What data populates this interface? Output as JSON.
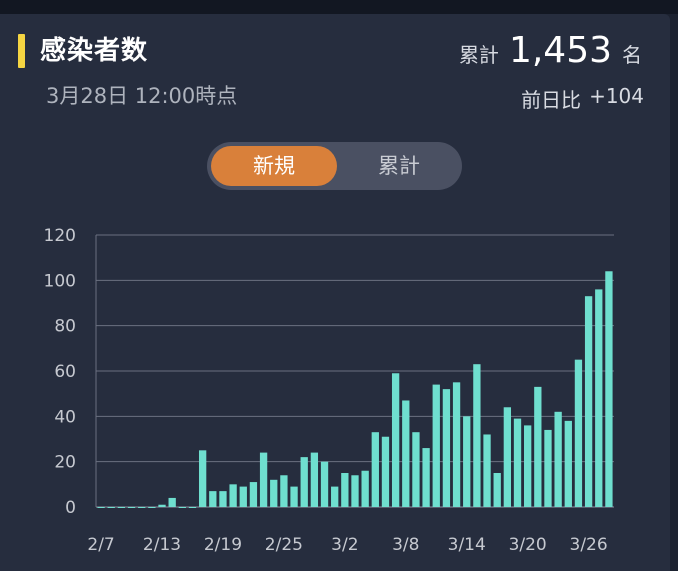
{
  "header": {
    "title": "感染者数",
    "subtitle": "3月28日 12:00時点",
    "total_label": "累計",
    "total_value": "1,453",
    "total_unit": "名",
    "diff_label": "前日比",
    "diff_value": "+104"
  },
  "toggle": {
    "active_label": "新規",
    "inactive_label": "累計"
  },
  "colors": {
    "bar": "#6fdfcf",
    "accent": "#f5d542",
    "toggle_active": "#d9803a",
    "background": "#262d3e"
  },
  "chart_data": {
    "type": "bar",
    "title": "",
    "xlabel": "",
    "ylabel": "",
    "ylim": [
      0,
      120
    ],
    "yticks": [
      0,
      20,
      40,
      60,
      80,
      100,
      120
    ],
    "grid": true,
    "categories": [
      "2/7",
      "2/8",
      "2/9",
      "2/10",
      "2/11",
      "2/12",
      "2/13",
      "2/14",
      "2/15",
      "2/16",
      "2/17",
      "2/18",
      "2/19",
      "2/20",
      "2/21",
      "2/22",
      "2/23",
      "2/24",
      "2/25",
      "2/26",
      "2/27",
      "2/28",
      "2/29",
      "3/1",
      "3/2",
      "3/3",
      "3/4",
      "3/5",
      "3/6",
      "3/7",
      "3/8",
      "3/9",
      "3/10",
      "3/11",
      "3/12",
      "3/13",
      "3/14",
      "3/15",
      "3/16",
      "3/17",
      "3/18",
      "3/19",
      "3/20",
      "3/21",
      "3/22",
      "3/23",
      "3/24",
      "3/25",
      "3/26",
      "3/27",
      "3/28"
    ],
    "values": [
      0,
      0,
      0,
      0,
      0,
      0,
      1,
      4,
      0,
      0,
      25,
      7,
      7,
      10,
      9,
      11,
      24,
      12,
      14,
      9,
      22,
      24,
      20,
      9,
      15,
      14,
      16,
      33,
      31,
      59,
      47,
      33,
      26,
      54,
      52,
      55,
      40,
      63,
      32,
      15,
      44,
      39,
      36,
      53,
      34,
      42,
      38,
      65,
      93,
      96,
      104
    ],
    "xtick_labels": [
      "2/7",
      "2/13",
      "2/19",
      "2/25",
      "3/2",
      "3/8",
      "3/14",
      "3/20",
      "3/26"
    ]
  }
}
